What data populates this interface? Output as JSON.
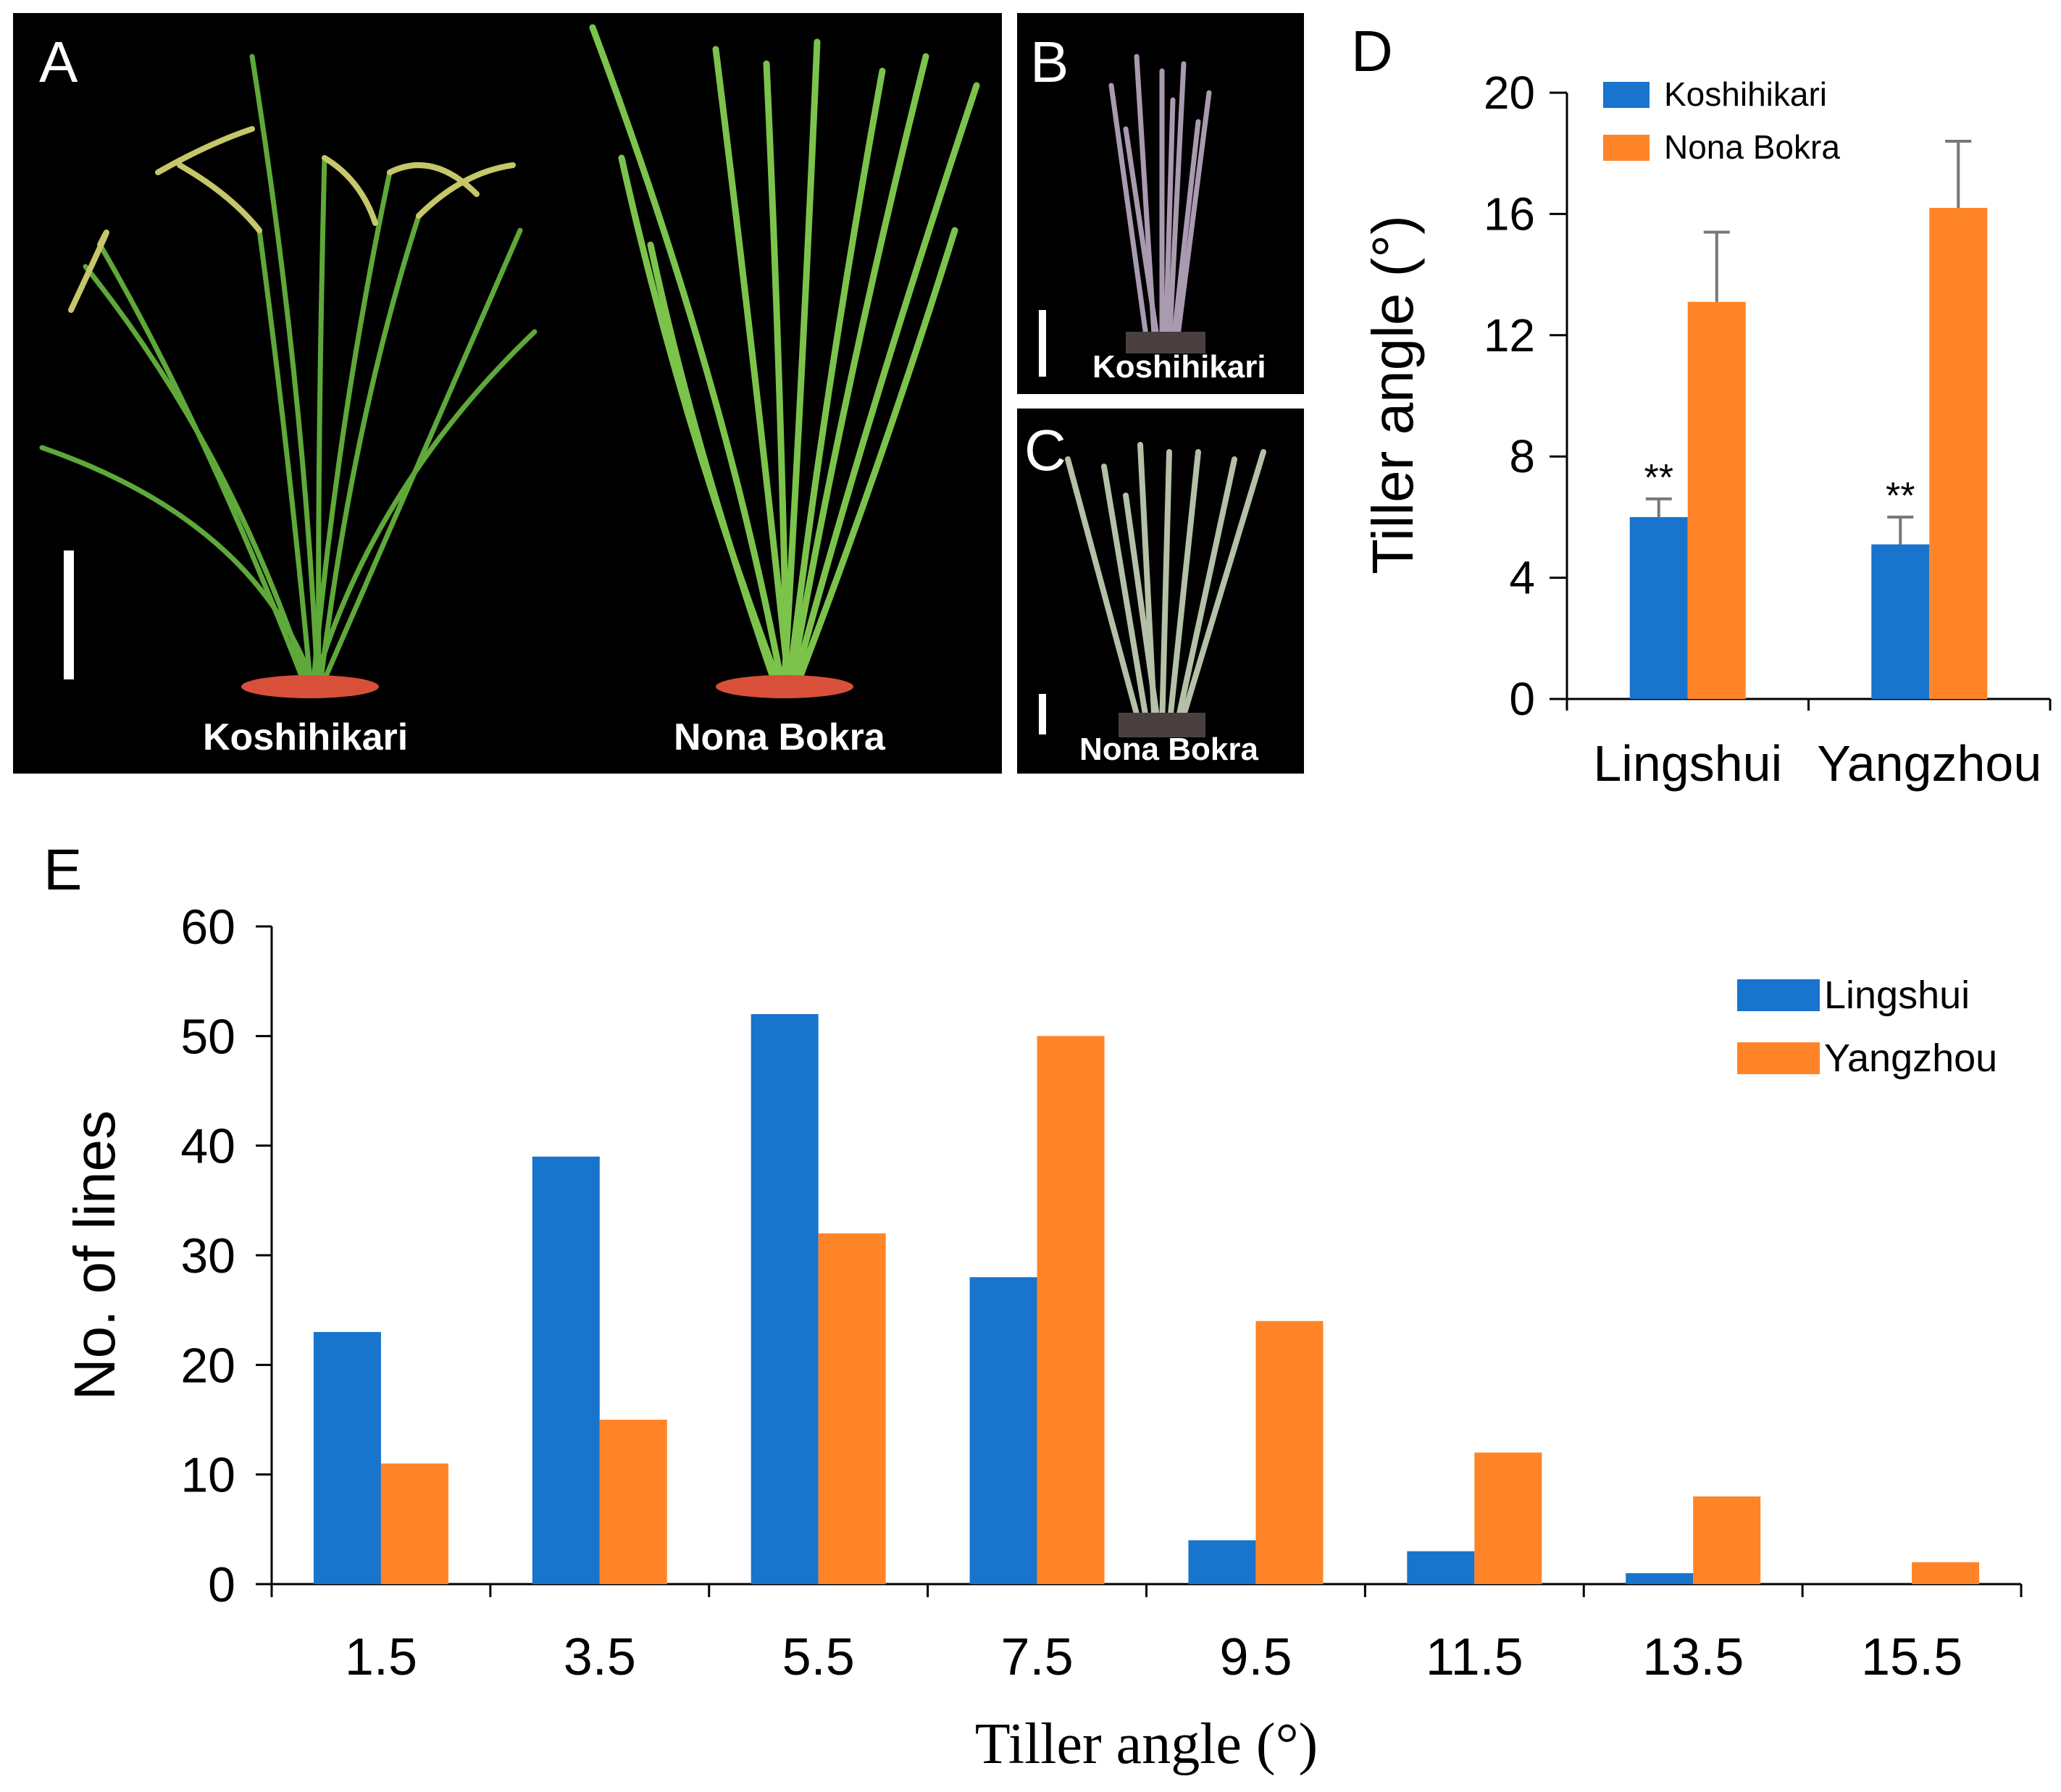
{
  "panel_a": {
    "letter": "A",
    "labels": [
      "Koshihikari",
      "Nona Bokra"
    ]
  },
  "panel_b": {
    "letter": "B",
    "label": "Koshihikari"
  },
  "panel_c": {
    "letter": "C",
    "label": "Nona Bokra"
  },
  "colors": {
    "blue": "#1874CD",
    "orange": "#FF8427",
    "photo_bg": "#000000",
    "plant_green": "#5fa83a",
    "pot": "#d9503a"
  },
  "chart_data": [
    {
      "panel": "D",
      "type": "bar",
      "categories": [
        "Lingshui",
        "Yangzhou"
      ],
      "series": [
        {
          "name": "Koshihikari",
          "values": [
            6.0,
            5.1
          ],
          "errors": [
            0.6,
            0.9
          ],
          "annotations": [
            "**",
            "**"
          ]
        },
        {
          "name": "Nona Bokra",
          "values": [
            13.1,
            16.2
          ],
          "errors": [
            2.3,
            2.2
          ]
        }
      ],
      "ylabel": "Tiller angle (°)",
      "ylim": [
        0,
        20
      ],
      "yticks": [
        "0",
        "4",
        "8",
        "12",
        "16",
        "20"
      ],
      "legend": "top-left",
      "grid": false
    },
    {
      "panel": "E",
      "type": "bar",
      "categories": [
        "1.5",
        "3.5",
        "5.5",
        "7.5",
        "9.5",
        "11.5",
        "13.5",
        "15.5"
      ],
      "series": [
        {
          "name": "Lingshui",
          "values": [
            23,
            39,
            52,
            28,
            4,
            3,
            1,
            0
          ]
        },
        {
          "name": "Yangzhou",
          "values": [
            11,
            15,
            32,
            50,
            24,
            12,
            8,
            2
          ]
        }
      ],
      "xlabel": "Tiller angle (°)",
      "ylabel": "No. of lines",
      "ylim": [
        0,
        60
      ],
      "yticks": [
        "0",
        "10",
        "20",
        "30",
        "40",
        "50",
        "60"
      ],
      "legend": "top-right",
      "grid": false
    }
  ]
}
